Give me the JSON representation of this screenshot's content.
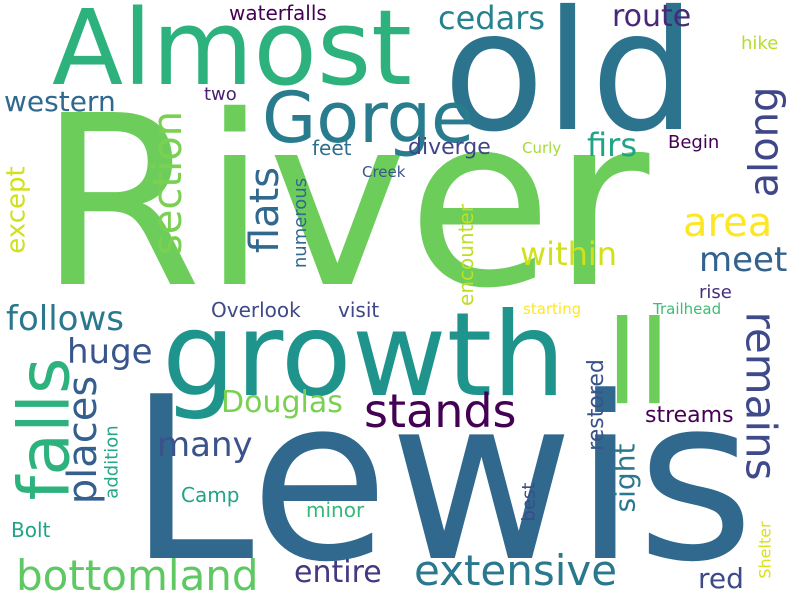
{
  "words": [
    {
      "text": "River",
      "color": "#6ccd5a",
      "rotate": false
    },
    {
      "text": "Lewis",
      "color": "#30688e",
      "rotate": false
    },
    {
      "text": "old",
      "color": "#2c738e",
      "rotate": false
    },
    {
      "text": "Almost",
      "color": "#2db27d",
      "rotate": false
    },
    {
      "text": "growth",
      "color": "#1f948c",
      "rotate": false
    },
    {
      "text": "ll",
      "color": "#6ccd5a",
      "rotate": false
    },
    {
      "text": "Gorge",
      "color": "#287c8e",
      "rotate": false
    },
    {
      "text": "falls",
      "color": "#2db27d",
      "rotate": true
    },
    {
      "text": "stands",
      "color": "#440154",
      "rotate": false
    },
    {
      "text": "remains",
      "color": "#3e4a89",
      "rotate": true
    },
    {
      "text": "extensive",
      "color": "#2a788e",
      "rotate": false
    },
    {
      "text": "bottomland",
      "color": "#5ec962",
      "rotate": false
    },
    {
      "text": "places",
      "color": "#355f8d",
      "rotate": true
    },
    {
      "text": "section",
      "color": "#7ad151",
      "rotate": true
    },
    {
      "text": "flats",
      "color": "#31688e",
      "rotate": true
    },
    {
      "text": "along",
      "color": "#3f4788",
      "rotate": true
    },
    {
      "text": "area",
      "color": "#fde725",
      "rotate": false
    },
    {
      "text": "cedars",
      "color": "#26828e",
      "rotate": false
    },
    {
      "text": "route",
      "color": "#482878",
      "rotate": false
    },
    {
      "text": "meet",
      "color": "#33638d",
      "rotate": false
    },
    {
      "text": "within",
      "color": "#d0e11c",
      "rotate": false
    },
    {
      "text": "huge",
      "color": "#39568c",
      "rotate": false
    },
    {
      "text": "follows",
      "color": "#2a788e",
      "rotate": false
    },
    {
      "text": "many",
      "color": "#3b528b",
      "rotate": false
    },
    {
      "text": "Douglas",
      "color": "#7ad151",
      "rotate": false
    },
    {
      "text": "entire",
      "color": "#453781",
      "rotate": false
    },
    {
      "text": "firs",
      "color": "#20a386",
      "rotate": false
    },
    {
      "text": "western",
      "color": "#31688e",
      "rotate": false
    },
    {
      "text": "except",
      "color": "#d0e11c",
      "rotate": true
    },
    {
      "text": "red",
      "color": "#3e4a89",
      "rotate": false
    },
    {
      "text": "sight",
      "color": "#2a788e",
      "rotate": true
    },
    {
      "text": "restored",
      "color": "#3b528b",
      "rotate": true
    },
    {
      "text": "streams",
      "color": "#440154",
      "rotate": false
    },
    {
      "text": "Overlook",
      "color": "#3e4a89",
      "rotate": false
    },
    {
      "text": "visit",
      "color": "#3f4788",
      "rotate": false
    },
    {
      "text": "encounter",
      "color": "#bddf26",
      "rotate": true
    },
    {
      "text": "diverge",
      "color": "#404688",
      "rotate": false
    },
    {
      "text": "feet",
      "color": "#2e6f8e",
      "rotate": false
    },
    {
      "text": "numerous",
      "color": "#31688e",
      "rotate": true
    },
    {
      "text": "Camp",
      "color": "#20a486",
      "rotate": false
    },
    {
      "text": "minor",
      "color": "#35b779",
      "rotate": false
    },
    {
      "text": "Bolt",
      "color": "#20a386",
      "rotate": false
    },
    {
      "text": "addition",
      "color": "#22a884",
      "rotate": true
    },
    {
      "text": "best",
      "color": "#3e4a89",
      "rotate": true
    },
    {
      "text": "rise",
      "color": "#472d7b",
      "rotate": false
    },
    {
      "text": "Shelter",
      "color": "#d8e219",
      "rotate": true
    },
    {
      "text": "Trailhead",
      "color": "#3dbc74",
      "rotate": false
    },
    {
      "text": "starting",
      "color": "#fde725",
      "rotate": false
    },
    {
      "text": "Begin",
      "color": "#440154",
      "rotate": false
    },
    {
      "text": "Curly",
      "color": "#a5db36",
      "rotate": false
    },
    {
      "text": "Creek",
      "color": "#39568c",
      "rotate": false
    },
    {
      "text": "two",
      "color": "#482173",
      "rotate": false
    },
    {
      "text": "waterfalls",
      "color": "#440154",
      "rotate": false
    },
    {
      "text": "hike",
      "color": "#b5de2b",
      "rotate": false
    }
  ]
}
